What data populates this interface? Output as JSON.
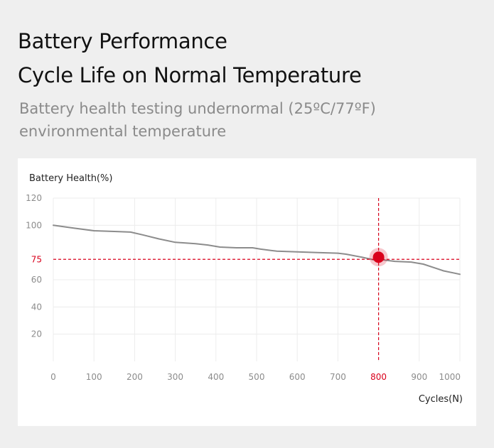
{
  "header": {
    "title_line1": "Battery Performance",
    "title_line2": "Cycle Life on Normal Temperature",
    "subtitle": "Battery health testing undernormal (25ºC/77ºF) environmental temperature"
  },
  "colors": {
    "line": "#8c8c8c",
    "highlight": "#d9001b",
    "grid": "#ececec",
    "tick_text": "#8c8c8c"
  },
  "chart_data": {
    "type": "line",
    "title": "",
    "xlabel": "Cycles(N)",
    "ylabel": "Battery Health(%)",
    "xlim": [
      0,
      1000
    ],
    "ylim": [
      0,
      120
    ],
    "x_ticks": [
      0,
      100,
      200,
      300,
      400,
      500,
      600,
      700,
      800,
      900,
      1000
    ],
    "y_ticks": [
      20,
      40,
      60,
      100,
      120
    ],
    "grid": true,
    "series": [
      {
        "x": [
          0,
          50,
          100,
          150,
          190,
          220,
          260,
          300,
          350,
          380,
          410,
          450,
          490,
          510,
          550,
          600,
          650,
          700,
          720,
          760,
          790,
          800,
          840,
          880,
          910,
          940,
          960,
          1000
        ],
        "values": [
          100,
          98,
          96,
          95.5,
          95,
          93,
          90,
          87.5,
          86.5,
          85.5,
          84,
          83.5,
          83.5,
          82.5,
          81,
          80.5,
          80,
          79.5,
          78.8,
          76.5,
          74.5,
          75,
          73.5,
          73,
          71.5,
          68.5,
          66.5,
          64
        ]
      }
    ],
    "highlight": {
      "x": 800,
      "y": 75,
      "x_label": "800",
      "y_label": "75"
    }
  }
}
